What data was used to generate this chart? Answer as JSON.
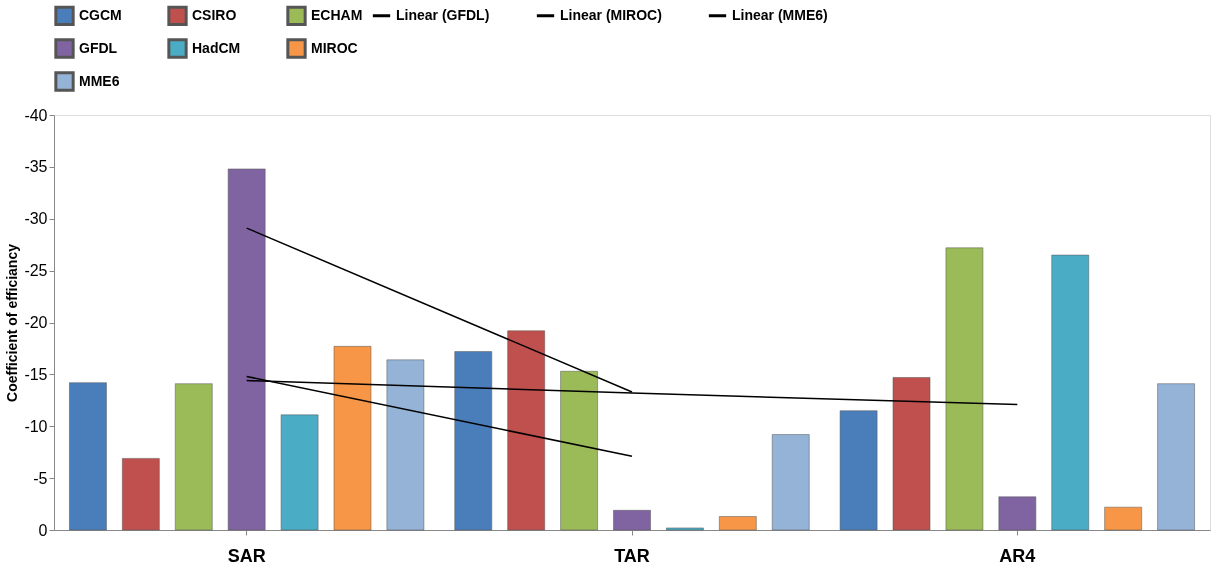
{
  "chart_data": {
    "type": "bar",
    "categories": [
      "SAR",
      "TAR",
      "AR4"
    ],
    "ylabel": "Coefficient of efficiancy",
    "ylim": [
      0,
      -40
    ],
    "yticks": [
      0,
      -5,
      -10,
      -15,
      -20,
      -25,
      -30,
      -35,
      -40
    ],
    "grid": false,
    "legend": "top",
    "series": [
      {
        "name": "CGCM",
        "color": "#4a7ebb",
        "values": [
          -14.2,
          -17.2,
          -11.5
        ]
      },
      {
        "name": "CSIRO",
        "color": "#c0504d",
        "values": [
          -6.9,
          -19.2,
          -14.7
        ]
      },
      {
        "name": "ECHAM",
        "color": "#9bbb59",
        "values": [
          -14.1,
          -15.3,
          -27.2
        ]
      },
      {
        "name": "GFDL",
        "color": "#8064a2",
        "values": [
          -34.8,
          -1.9,
          -3.2
        ]
      },
      {
        "name": "HadCM",
        "color": "#4bacc6",
        "values": [
          -11.1,
          -0.2,
          -26.5
        ]
      },
      {
        "name": "MIROC",
        "color": "#f79646",
        "values": [
          -17.7,
          -1.3,
          -2.2
        ]
      },
      {
        "name": "MME6",
        "color": "#95b3d7",
        "values": [
          -16.4,
          -9.2,
          -14.1
        ]
      },
      {
        "name": "Linear (GFDL)",
        "type": "line",
        "color": "#000000",
        "values": [
          -29.1,
          -13.3,
          null
        ]
      },
      {
        "name": "Linear (MIROC)",
        "type": "line",
        "color": "#000000",
        "values": [
          -14.8,
          -7.1,
          null
        ]
      },
      {
        "name": "Linear (MME6)",
        "type": "line",
        "color": "#000000",
        "values": [
          -14.4,
          -13.2,
          -12.1
        ]
      }
    ]
  }
}
